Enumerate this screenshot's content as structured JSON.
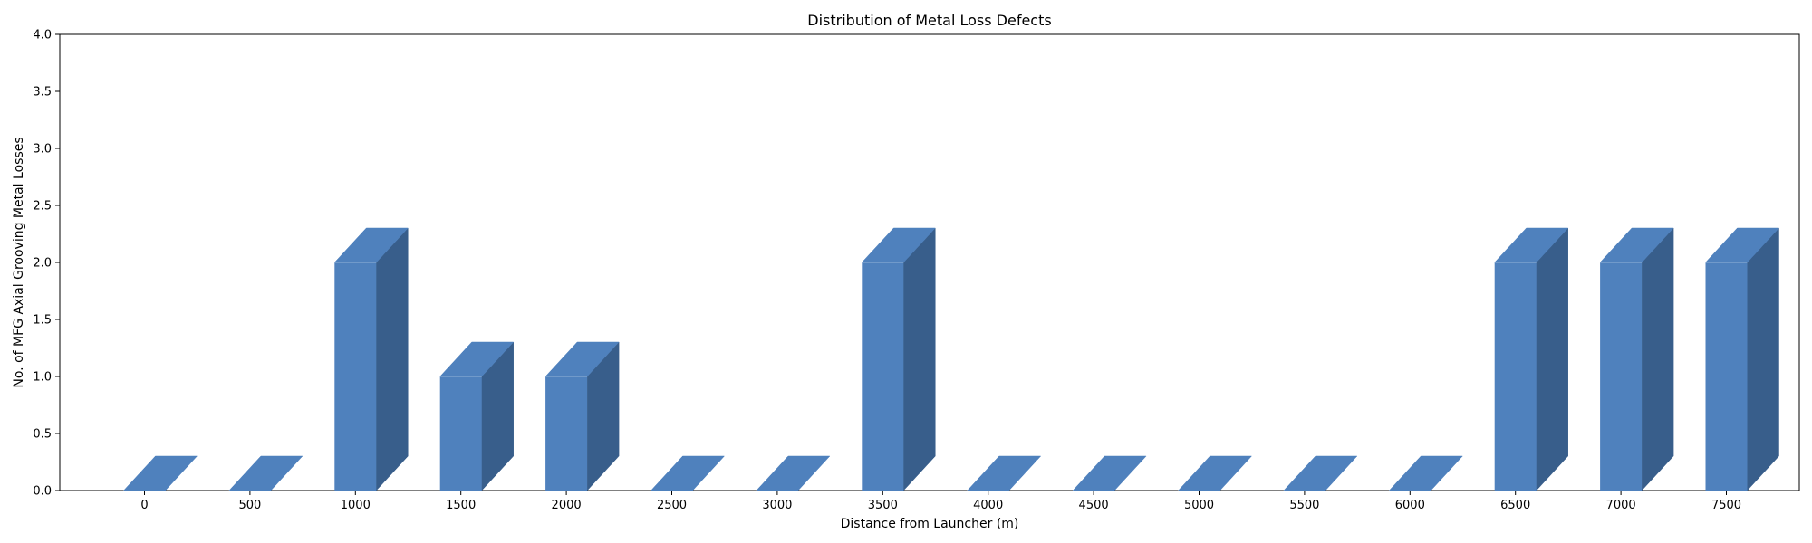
{
  "chart_data": {
    "type": "bar",
    "title": "Distribution of Metal Loss Defects",
    "xlabel": "Distance from Launcher (m)",
    "ylabel": "No. of MFG Axial Grooving Metal Losses",
    "categories": [
      "0",
      "500",
      "1000",
      "1500",
      "2000",
      "2500",
      "3000",
      "3500",
      "4000",
      "4500",
      "5000",
      "5500",
      "6000",
      "6500",
      "7000",
      "7500"
    ],
    "values": [
      0,
      0,
      2,
      1,
      1,
      0,
      0,
      2,
      0,
      0,
      0,
      0,
      0,
      2,
      2,
      2
    ],
    "ylim": [
      0,
      4
    ],
    "yticks": [
      "0.0",
      "0.5",
      "1.0",
      "1.5",
      "2.0",
      "2.5",
      "3.0",
      "3.5",
      "4.0"
    ],
    "bar_style": "3d",
    "grid": false,
    "legend": "none",
    "colors": {
      "bar_front": "#4f81bd",
      "bar_side": "#385e8b",
      "bar_top": "#4f81bd",
      "bar_edge": "#d8e2ef",
      "axis": "#000000"
    }
  }
}
